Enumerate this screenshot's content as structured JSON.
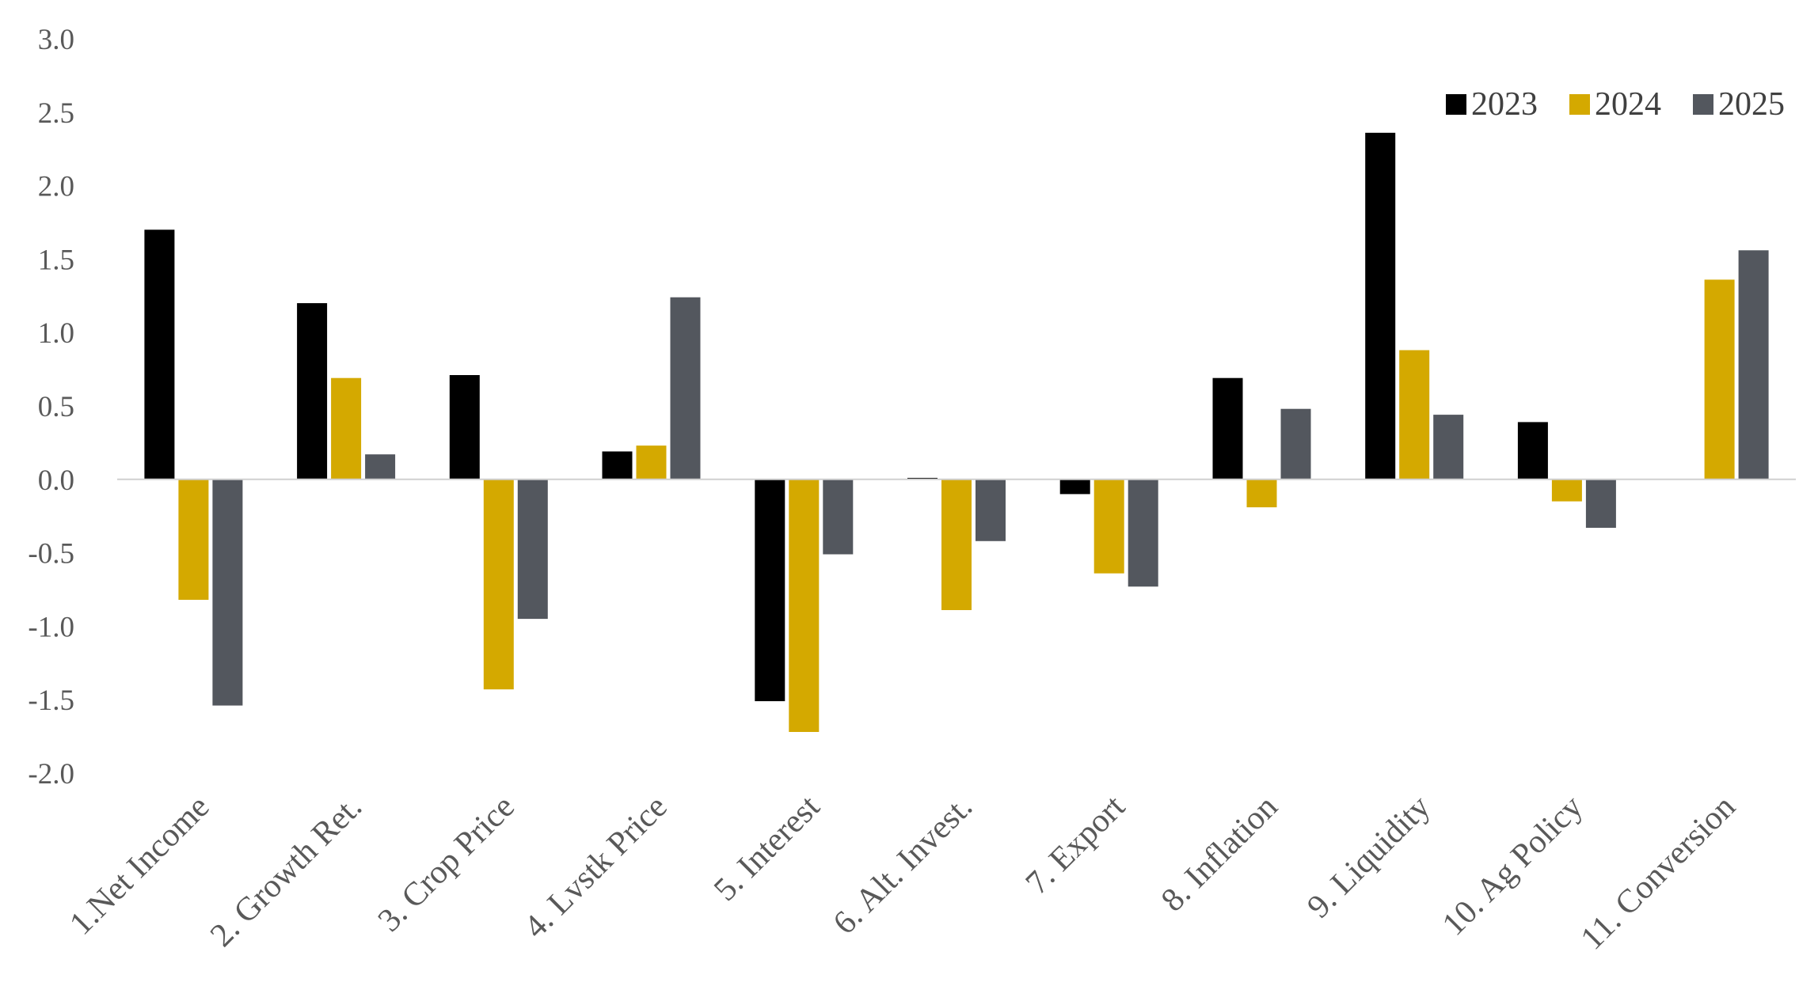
{
  "chart_data": {
    "type": "bar",
    "title": "",
    "xlabel": "",
    "ylabel": "",
    "ylim": [
      -2.0,
      3.0
    ],
    "ytick_step": 0.5,
    "ytick_labels": [
      "-2.0",
      "-1.5",
      "-1.0",
      "-0.5",
      "0.0",
      "0.5",
      "1.0",
      "1.5",
      "2.0",
      "2.5",
      "3.0"
    ],
    "grid": false,
    "legend_position": "top-right",
    "categories": [
      "1.Net Income",
      "2. Growth Ret.",
      "3. Crop Price",
      "4. Lvstk Price",
      "5. Interest",
      "6. Alt. Invest.",
      "7. Export",
      "8. Inflation",
      "9. Liquidity",
      "10. Ag Policy",
      "11. Conversion"
    ],
    "series": [
      {
        "name": "2023",
        "color": "#000000",
        "values": [
          1.7,
          1.2,
          0.71,
          0.19,
          -1.51,
          0.01,
          -0.1,
          0.69,
          2.36,
          0.39,
          null
        ]
      },
      {
        "name": "2024",
        "color": "#D4A900",
        "values": [
          -0.82,
          0.69,
          -1.43,
          0.23,
          -1.72,
          -0.89,
          -0.64,
          -0.19,
          0.88,
          -0.15,
          1.36
        ]
      },
      {
        "name": "2025",
        "color": "#53575E",
        "values": [
          -1.54,
          0.17,
          -0.95,
          1.24,
          -0.51,
          -0.42,
          -0.73,
          0.48,
          0.44,
          -0.33,
          1.56
        ]
      }
    ]
  }
}
